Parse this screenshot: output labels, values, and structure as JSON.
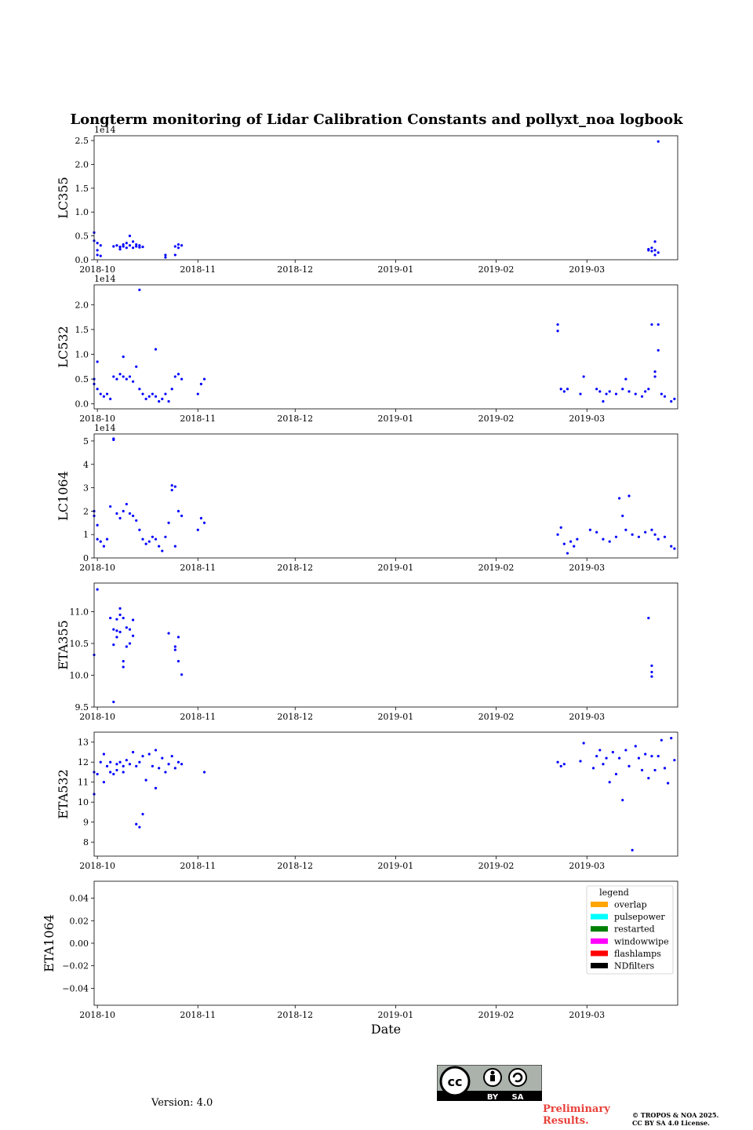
{
  "title": "Longterm monitoring of Lidar Calibration Constants and pollyxt_noa logbook",
  "xlabel": "Date",
  "version_text": "Version: 4.0",
  "preliminary": [
    "Preliminary",
    "Results."
  ],
  "copyright": [
    "© TROPOS & NOA 2025.",
    "CC BY SA 4.0 License."
  ],
  "license_badge": {
    "cc": "cc",
    "by": "BY",
    "sa": "SA"
  },
  "colors": {
    "points": "#0000ff",
    "axes": "#000000"
  },
  "chart_data": [
    {
      "type": "scatter",
      "ylabel": "LC355",
      "ylim": [
        0,
        2.6
      ],
      "multiplier": "1e14",
      "yticks": [
        0.0,
        0.5,
        1.0,
        1.5,
        2.0,
        2.5
      ],
      "ytick_labels": [
        "0.0",
        "0.5",
        "1.0",
        "1.5",
        "2.0",
        "2.5"
      ],
      "xticks": [
        "2018-10",
        "2018-11",
        "2018-12",
        "2019-01",
        "2019-02",
        "2019-03"
      ],
      "xlim": [
        "2018-09-30",
        "2019-03-29"
      ],
      "x": [
        "2018-09-30",
        "2018-09-30",
        "2018-10-01",
        "2018-10-01",
        "2018-10-01",
        "2018-10-02",
        "2018-10-02",
        "2018-10-06",
        "2018-10-07",
        "2018-10-08",
        "2018-10-08",
        "2018-10-09",
        "2018-10-09",
        "2018-10-10",
        "2018-10-10",
        "2018-10-11",
        "2018-10-11",
        "2018-10-12",
        "2018-10-12",
        "2018-10-13",
        "2018-10-13",
        "2018-10-14",
        "2018-10-14",
        "2018-10-15",
        "2018-10-22",
        "2018-10-22",
        "2018-10-25",
        "2018-10-25",
        "2018-10-26",
        "2018-10-26",
        "2018-10-27",
        "2019-03-20",
        "2019-03-20",
        "2019-03-21",
        "2019-03-21",
        "2019-03-22",
        "2019-03-22",
        "2019-03-22",
        "2019-03-23",
        "2019-03-23"
      ],
      "values": [
        0.57,
        0.4,
        0.35,
        0.2,
        0.1,
        0.3,
        0.08,
        0.28,
        0.3,
        0.27,
        0.22,
        0.32,
        0.28,
        0.35,
        0.25,
        0.5,
        0.3,
        0.38,
        0.25,
        0.32,
        0.28,
        0.3,
        0.26,
        0.27,
        0.1,
        0.05,
        0.28,
        0.1,
        0.32,
        0.25,
        0.3,
        0.22,
        0.2,
        0.18,
        0.25,
        0.38,
        0.2,
        0.1,
        0.15,
        2.48
      ]
    },
    {
      "type": "scatter",
      "ylabel": "LC532",
      "ylim": [
        -0.1,
        2.4
      ],
      "multiplier": "1e14",
      "yticks": [
        0.0,
        0.5,
        1.0,
        1.5,
        2.0
      ],
      "ytick_labels": [
        "0.0",
        "0.5",
        "1.0",
        "1.5",
        "2.0"
      ],
      "xticks": [
        "2018-10",
        "2018-11",
        "2018-12",
        "2019-01",
        "2019-02",
        "2019-03"
      ],
      "xlim": [
        "2018-09-30",
        "2019-03-29"
      ],
      "x": [
        "2018-09-30",
        "2018-09-30",
        "2018-10-01",
        "2018-10-01",
        "2018-10-02",
        "2018-10-03",
        "2018-10-04",
        "2018-10-05",
        "2018-10-06",
        "2018-10-07",
        "2018-10-08",
        "2018-10-09",
        "2018-10-09",
        "2018-10-10",
        "2018-10-11",
        "2018-10-12",
        "2018-10-13",
        "2018-10-14",
        "2018-10-14",
        "2018-10-15",
        "2018-10-16",
        "2018-10-17",
        "2018-10-18",
        "2018-10-19",
        "2018-10-19",
        "2018-10-20",
        "2018-10-21",
        "2018-10-22",
        "2018-10-23",
        "2018-10-24",
        "2018-10-25",
        "2018-10-26",
        "2018-10-27",
        "2018-11-01",
        "2018-11-02",
        "2018-11-03",
        "2019-02-20",
        "2019-02-20",
        "2019-02-21",
        "2019-02-22",
        "2019-02-23",
        "2019-02-27",
        "2019-02-28",
        "2019-03-04",
        "2019-03-05",
        "2019-03-06",
        "2019-03-07",
        "2019-03-08",
        "2019-03-10",
        "2019-03-12",
        "2019-03-13",
        "2019-03-14",
        "2019-03-16",
        "2019-03-18",
        "2019-03-19",
        "2019-03-20",
        "2019-03-21",
        "2019-03-22",
        "2019-03-22",
        "2019-03-23",
        "2019-03-23",
        "2019-03-24",
        "2019-03-25",
        "2019-03-27",
        "2019-03-28"
      ],
      "values": [
        0.5,
        0.4,
        0.85,
        0.3,
        0.2,
        0.15,
        0.2,
        0.1,
        0.55,
        0.5,
        0.6,
        0.55,
        0.95,
        0.5,
        0.55,
        0.45,
        0.75,
        2.3,
        0.3,
        0.2,
        0.1,
        0.15,
        0.2,
        0.15,
        1.1,
        0.05,
        0.1,
        0.2,
        0.05,
        0.3,
        0.55,
        0.6,
        0.5,
        0.2,
        0.4,
        0.5,
        1.6,
        1.47,
        0.3,
        0.25,
        0.3,
        0.2,
        0.55,
        0.3,
        0.25,
        0.05,
        0.2,
        0.25,
        0.2,
        0.3,
        0.5,
        0.25,
        0.2,
        0.15,
        0.25,
        0.3,
        1.6,
        0.65,
        0.55,
        1.6,
        1.08,
        0.2,
        0.15,
        0.05,
        0.1
      ]
    },
    {
      "type": "scatter",
      "ylabel": "LC1064",
      "ylim": [
        0,
        5.3
      ],
      "multiplier": "1e14",
      "yticks": [
        0,
        1,
        2,
        3,
        4,
        5
      ],
      "ytick_labels": [
        "0",
        "1",
        "2",
        "3",
        "4",
        "5"
      ],
      "xticks": [
        "2018-10",
        "2018-11",
        "2018-12",
        "2019-01",
        "2019-02",
        "2019-03"
      ],
      "xlim": [
        "2018-09-30",
        "2019-03-29"
      ],
      "x": [
        "2018-09-30",
        "2018-09-30",
        "2018-10-01",
        "2018-10-01",
        "2018-10-02",
        "2018-10-03",
        "2018-10-04",
        "2018-10-05",
        "2018-10-06",
        "2018-10-06",
        "2018-10-07",
        "2018-10-08",
        "2018-10-09",
        "2018-10-10",
        "2018-10-11",
        "2018-10-12",
        "2018-10-13",
        "2018-10-14",
        "2018-10-15",
        "2018-10-16",
        "2018-10-17",
        "2018-10-18",
        "2018-10-19",
        "2018-10-20",
        "2018-10-21",
        "2018-10-22",
        "2018-10-23",
        "2018-10-24",
        "2018-10-24",
        "2018-10-25",
        "2018-10-25",
        "2018-10-26",
        "2018-10-27",
        "2018-11-01",
        "2018-11-02",
        "2018-11-03",
        "2019-02-20",
        "2019-02-21",
        "2019-02-22",
        "2019-02-23",
        "2019-02-24",
        "2019-02-25",
        "2019-02-26",
        "2019-03-02",
        "2019-03-04",
        "2019-03-06",
        "2019-03-08",
        "2019-03-10",
        "2019-03-11",
        "2019-03-12",
        "2019-03-13",
        "2019-03-14",
        "2019-03-15",
        "2019-03-17",
        "2019-03-19",
        "2019-03-21",
        "2019-03-22",
        "2019-03-23",
        "2019-03-25",
        "2019-03-27",
        "2019-03-28"
      ],
      "values": [
        2.0,
        1.8,
        1.4,
        0.8,
        0.7,
        0.5,
        0.8,
        2.2,
        5.1,
        5.05,
        1.9,
        1.7,
        2.0,
        2.3,
        1.9,
        1.8,
        1.6,
        1.2,
        0.8,
        0.6,
        0.7,
        0.9,
        0.8,
        0.5,
        0.3,
        0.9,
        1.5,
        3.1,
        2.9,
        3.05,
        0.5,
        2.0,
        1.8,
        1.2,
        1.7,
        1.5,
        1.0,
        1.3,
        0.6,
        0.2,
        0.7,
        0.5,
        0.8,
        1.2,
        1.1,
        0.8,
        0.7,
        0.9,
        2.55,
        1.8,
        1.2,
        2.65,
        1.0,
        0.9,
        1.1,
        1.2,
        1.0,
        0.8,
        0.9,
        0.5,
        0.4
      ]
    },
    {
      "type": "scatter",
      "ylabel": "ETA355",
      "ylim": [
        9.5,
        11.45
      ],
      "yticks": [
        9.5,
        10.0,
        10.5,
        11.0
      ],
      "ytick_labels": [
        "9.5",
        "10.0",
        "10.5",
        "11.0"
      ],
      "xticks": [
        "2018-10",
        "2018-11",
        "2018-12",
        "2019-01",
        "2019-02",
        "2019-03"
      ],
      "xlim": [
        "2018-09-30",
        "2019-03-29"
      ],
      "x": [
        "2018-09-30",
        "2018-10-01",
        "2018-10-05",
        "2018-10-06",
        "2018-10-06",
        "2018-10-06",
        "2018-10-07",
        "2018-10-07",
        "2018-10-07",
        "2018-10-08",
        "2018-10-08",
        "2018-10-08",
        "2018-10-09",
        "2018-10-09",
        "2018-10-09",
        "2018-10-10",
        "2018-10-10",
        "2018-10-11",
        "2018-10-11",
        "2018-10-12",
        "2018-10-12",
        "2018-10-23",
        "2018-10-25",
        "2018-10-25",
        "2018-10-26",
        "2018-10-26",
        "2018-10-27",
        "2019-03-20",
        "2019-03-21",
        "2019-03-21",
        "2019-03-21"
      ],
      "values": [
        10.32,
        11.35,
        10.9,
        10.48,
        10.72,
        9.58,
        10.88,
        10.7,
        10.6,
        11.05,
        10.95,
        10.68,
        10.13,
        10.9,
        10.22,
        10.45,
        10.75,
        10.5,
        10.72,
        10.87,
        10.62,
        10.66,
        10.4,
        10.45,
        10.6,
        10.22,
        10.01,
        10.9,
        10.15,
        10.05,
        9.98
      ]
    },
    {
      "type": "scatter",
      "ylabel": "ETA532",
      "ylim": [
        7.3,
        13.5
      ],
      "yticks": [
        8,
        9,
        10,
        11,
        12,
        13
      ],
      "ytick_labels": [
        "8",
        "9",
        "10",
        "11",
        "12",
        "13"
      ],
      "xticks": [
        "2018-10",
        "2018-11",
        "2018-12",
        "2019-01",
        "2019-02",
        "2019-03"
      ],
      "xlim": [
        "2018-09-30",
        "2019-03-29"
      ],
      "x": [
        "2018-09-30",
        "2018-09-30",
        "2018-10-01",
        "2018-10-02",
        "2018-10-03",
        "2018-10-03",
        "2018-10-04",
        "2018-10-05",
        "2018-10-05",
        "2018-10-06",
        "2018-10-07",
        "2018-10-07",
        "2018-10-08",
        "2018-10-09",
        "2018-10-09",
        "2018-10-10",
        "2018-10-11",
        "2018-10-12",
        "2018-10-13",
        "2018-10-13",
        "2018-10-14",
        "2018-10-14",
        "2018-10-15",
        "2018-10-15",
        "2018-10-16",
        "2018-10-17",
        "2018-10-18",
        "2018-10-19",
        "2018-10-19",
        "2018-10-20",
        "2018-10-21",
        "2018-10-22",
        "2018-10-23",
        "2018-10-24",
        "2018-10-25",
        "2018-10-26",
        "2018-10-27",
        "2018-11-03",
        "2019-02-20",
        "2019-02-21",
        "2019-02-22",
        "2019-02-27",
        "2019-02-28",
        "2019-03-03",
        "2019-03-04",
        "2019-03-05",
        "2019-03-06",
        "2019-03-07",
        "2019-03-08",
        "2019-03-09",
        "2019-03-10",
        "2019-03-11",
        "2019-03-12",
        "2019-03-13",
        "2019-03-14",
        "2019-03-15",
        "2019-03-16",
        "2019-03-17",
        "2019-03-18",
        "2019-03-19",
        "2019-03-20",
        "2019-03-21",
        "2019-03-22",
        "2019-03-23",
        "2019-03-24",
        "2019-03-25",
        "2019-03-26",
        "2019-03-27",
        "2019-03-28"
      ],
      "values": [
        10.4,
        11.5,
        11.4,
        12.0,
        11.0,
        12.4,
        11.8,
        11.5,
        12.0,
        11.4,
        11.9,
        11.6,
        12.0,
        11.5,
        11.8,
        12.1,
        11.9,
        12.5,
        11.8,
        8.9,
        12.0,
        8.75,
        9.4,
        12.3,
        11.1,
        12.4,
        11.8,
        12.6,
        10.7,
        11.7,
        12.2,
        11.5,
        11.9,
        12.3,
        11.7,
        12.0,
        11.9,
        11.5,
        12.0,
        11.8,
        11.9,
        12.05,
        12.95,
        11.7,
        12.3,
        12.6,
        11.9,
        12.2,
        11.0,
        12.5,
        11.4,
        12.2,
        10.1,
        12.6,
        11.8,
        7.6,
        12.8,
        12.2,
        11.6,
        12.4,
        11.2,
        12.3,
        11.6,
        12.3,
        13.1,
        11.7,
        10.95,
        13.2,
        12.1
      ]
    },
    {
      "type": "scatter",
      "ylabel": "ETA1064",
      "ylim": [
        -0.055,
        0.055
      ],
      "yticks": [
        -0.04,
        -0.02,
        0.0,
        0.02,
        0.04
      ],
      "ytick_labels": [
        "−0.04",
        "−0.02",
        "0.00",
        "0.02",
        "0.04"
      ],
      "xticks": [
        "2018-10",
        "2018-11",
        "2018-12",
        "2019-01",
        "2019-02",
        "2019-03"
      ],
      "xlim": [
        "2018-09-30",
        "2019-03-29"
      ],
      "x": [],
      "values": [],
      "legend": {
        "title": "legend",
        "placement": "top-right",
        "entries": [
          {
            "label": "overlap",
            "color": "#ffa500"
          },
          {
            "label": "pulsepower",
            "color": "#00ffff"
          },
          {
            "label": "restarted",
            "color": "#008000"
          },
          {
            "label": "windowwipe",
            "color": "#ff00ff"
          },
          {
            "label": "flashlamps",
            "color": "#ff0000"
          },
          {
            "label": "NDfilters",
            "color": "#000000"
          }
        ]
      }
    }
  ]
}
